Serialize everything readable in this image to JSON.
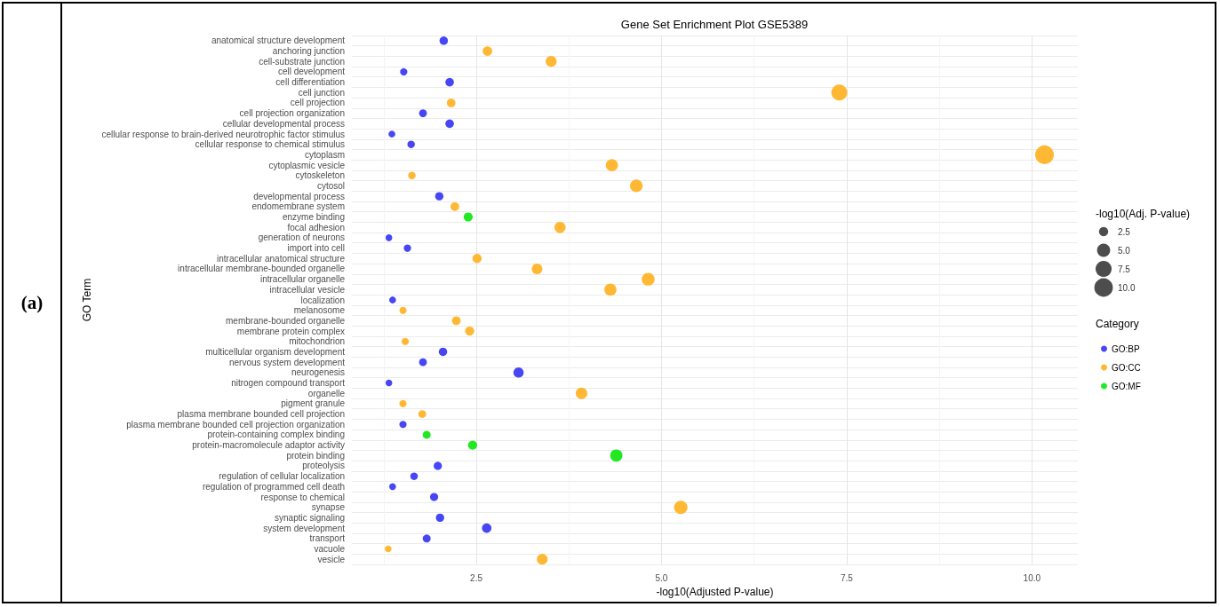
{
  "chart_data": {
    "type": "bubble",
    "orientation": "horizontal",
    "title": "Gene Set Enrichment Plot GSE5389",
    "xlabel": "-log10(Adjusted P-value)",
    "ylabel": "GO Term",
    "legend_title": "Category",
    "annotations": [
      "(a)",
      "-log10(Adj. P-value)"
    ],
    "categories": [
      "anatomical structure development",
      "anchoring junction",
      "cell-substrate junction",
      "cell development",
      "cell differentiation",
      "cell junction",
      "cell projection",
      "cell projection organization",
      "cellular developmental process",
      "cellular response to brain-derived neurotrophic factor stimulus",
      "cellular response to chemical stimulus",
      "cytoplasm",
      "cytoplasmic vesicle",
      "cytoskeleton",
      "cytosol",
      "developmental process",
      "endomembrane system",
      "enzyme binding",
      "focal adhesion",
      "generation of neurons",
      "import into cell",
      "intracellular anatomical structure",
      "intracellular membrane-bounded organelle",
      "intracellular organelle",
      "intracellular vesicle",
      "localization",
      "melanosome",
      "membrane-bounded organelle",
      "membrane protein complex",
      "mitochondrion",
      "multicellular organism development",
      "nervous system development",
      "neurogenesis",
      "nitrogen compound transport",
      "organelle",
      "pigment granule",
      "plasma membrane bounded cell projection",
      "plasma membrane bounded cell projection organization",
      "protein-containing complex binding",
      "protein-macromolecule adaptor activity",
      "protein binding",
      "proteolysis",
      "regulation of cellular localization",
      "regulation of programmed cell death",
      "response to chemical",
      "synapse",
      "synaptic signaling",
      "system development",
      "transport",
      "vacuole",
      "vesicle"
    ],
    "series": [
      {
        "name": "GO:BP",
        "color": "#4646f5",
        "values": [
          2.06,
          null,
          null,
          1.52,
          2.14,
          null,
          null,
          1.78,
          2.14,
          1.36,
          1.62,
          null,
          null,
          null,
          null,
          2.0,
          null,
          null,
          null,
          1.32,
          1.57,
          null,
          null,
          null,
          null,
          1.37,
          null,
          null,
          null,
          null,
          2.05,
          1.78,
          3.07,
          1.32,
          null,
          null,
          null,
          1.51,
          null,
          null,
          null,
          1.98,
          1.66,
          1.37,
          1.93,
          null,
          2.01,
          2.64,
          1.83,
          null,
          null
        ],
        "sizes": [
          2.06,
          null,
          null,
          1.52,
          2.14,
          null,
          null,
          1.78,
          2.14,
          1.36,
          1.62,
          null,
          null,
          null,
          null,
          2.0,
          null,
          null,
          null,
          1.32,
          1.57,
          null,
          null,
          null,
          null,
          1.37,
          null,
          null,
          null,
          null,
          2.05,
          1.78,
          3.07,
          1.32,
          null,
          null,
          null,
          1.51,
          null,
          null,
          null,
          1.98,
          1.66,
          1.37,
          1.93,
          null,
          2.01,
          2.64,
          1.83,
          null,
          null
        ]
      },
      {
        "name": "GO:CC",
        "color": "#ffb833",
        "values": [
          null,
          2.65,
          3.51,
          null,
          null,
          7.4,
          2.16,
          null,
          null,
          null,
          null,
          10.17,
          4.33,
          1.63,
          4.66,
          null,
          2.21,
          null,
          3.63,
          null,
          null,
          2.51,
          3.32,
          4.82,
          4.31,
          null,
          1.51,
          2.23,
          2.41,
          1.54,
          null,
          null,
          null,
          null,
          3.92,
          1.51,
          1.77,
          null,
          null,
          null,
          null,
          null,
          null,
          null,
          null,
          5.26,
          null,
          null,
          null,
          1.31,
          3.39
        ],
        "sizes": [
          null,
          2.65,
          3.51,
          null,
          null,
          7.4,
          2.16,
          null,
          null,
          null,
          null,
          10.17,
          4.33,
          1.63,
          4.66,
          null,
          2.21,
          null,
          3.63,
          null,
          null,
          2.51,
          3.32,
          4.82,
          4.31,
          null,
          1.51,
          2.23,
          2.41,
          1.54,
          null,
          null,
          null,
          null,
          3.92,
          1.51,
          1.77,
          null,
          null,
          null,
          null,
          null,
          null,
          null,
          null,
          5.26,
          null,
          null,
          null,
          1.31,
          3.39
        ]
      },
      {
        "name": "GO:MF",
        "color": "#22e822",
        "values": [
          null,
          null,
          null,
          null,
          null,
          null,
          null,
          null,
          null,
          null,
          null,
          null,
          null,
          null,
          null,
          null,
          null,
          2.39,
          null,
          null,
          null,
          null,
          null,
          null,
          null,
          null,
          null,
          null,
          null,
          null,
          null,
          null,
          null,
          null,
          null,
          null,
          null,
          null,
          1.83,
          2.45,
          4.39,
          null,
          null,
          null,
          null,
          null,
          null,
          null,
          null,
          null,
          null
        ],
        "sizes": [
          null,
          null,
          null,
          null,
          null,
          null,
          null,
          null,
          null,
          null,
          null,
          null,
          null,
          null,
          null,
          null,
          null,
          2.39,
          null,
          null,
          null,
          null,
          null,
          null,
          null,
          null,
          null,
          null,
          null,
          null,
          null,
          null,
          null,
          null,
          null,
          null,
          null,
          null,
          1.83,
          2.45,
          4.39,
          null,
          null,
          null,
          null,
          null,
          null,
          null,
          null,
          null,
          null
        ]
      }
    ],
    "size_legend": [
      {
        "value": 2.5,
        "label": "2.5"
      },
      {
        "value": 5,
        "label": "5.0"
      },
      {
        "value": 7.5,
        "label": "7.5"
      },
      {
        "value": 10,
        "label": "10.0"
      }
    ],
    "xlim": [
      0.82,
      10.62
    ],
    "xticks": [
      {
        "value": 1.25,
        "label": null
      },
      {
        "value": 2.5,
        "label": "2.5"
      },
      {
        "value": 3.75,
        "label": null
      },
      {
        "value": 5,
        "label": "5.0"
      },
      {
        "value": 6.25,
        "label": null
      },
      {
        "value": 7.5,
        "label": "7.5"
      },
      {
        "value": 8.75,
        "label": null
      },
      {
        "value": 10,
        "label": "10.0"
      }
    ],
    "grid": true,
    "legend": "right",
    "marker": "circle"
  }
}
